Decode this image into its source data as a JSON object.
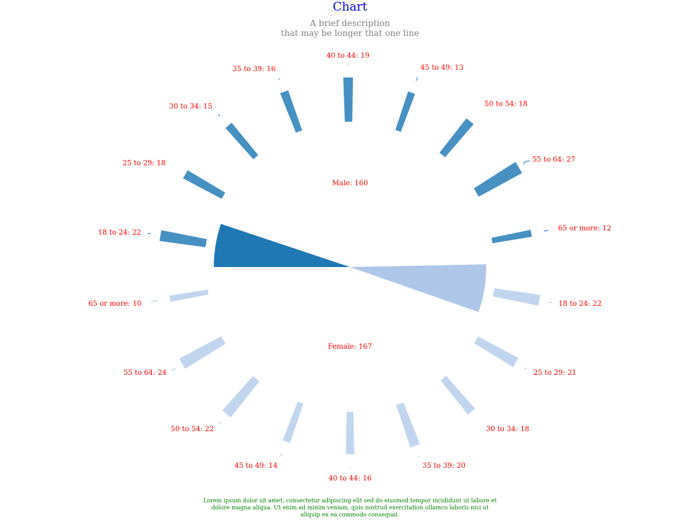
{
  "title": "Chart",
  "subtitle_lines": [
    "A brief description",
    "that may be longer that one line"
  ],
  "footer": "Lorem ipsum dolor sit amet, consectetur adipiscing elit sed do eiusmod tempor incididunt ut labore et dolore magna aliqua. Ut enim ad minim veniam, quis nostrud exercitation ullamco laboris nisi ut aliquip ex ea commodo consequat.",
  "colors": {
    "male": "#1f77b4",
    "female": "#aec7e8",
    "labels": "#ff0000",
    "title": "#0000ff",
    "subtitle": "#808080",
    "footer": "#008000"
  },
  "chart_data": {
    "type": "pie",
    "groups": [
      {
        "name": "Male",
        "value": 160,
        "label": "Male: 160",
        "categories": [
          {
            "name": "18 to 24",
            "value": 22,
            "label": "18 to 24: 22"
          },
          {
            "name": "25 to 29",
            "value": 18,
            "label": "25 to 29: 18"
          },
          {
            "name": "30 to 34",
            "value": 15,
            "label": "30 to 34: 15"
          },
          {
            "name": "35 to 39",
            "value": 16,
            "label": "35 to 39: 16"
          },
          {
            "name": "40 to 44",
            "value": 19,
            "label": "40 to 44: 19"
          },
          {
            "name": "45 to 49",
            "value": 13,
            "label": "45 to 49: 13"
          },
          {
            "name": "50 to 54",
            "value": 18,
            "label": "50 to 54: 18"
          },
          {
            "name": "55 to 64",
            "value": 27,
            "label": "55 to 64: 27"
          },
          {
            "name": "65 or more",
            "value": 12,
            "label": "65 or more: 12"
          }
        ]
      },
      {
        "name": "Female",
        "value": 167,
        "label": "Female: 167",
        "categories": [
          {
            "name": "18 to 24",
            "value": 22,
            "label": "18 to 24: 22"
          },
          {
            "name": "25 to 29",
            "value": 21,
            "label": "25 to 29: 21"
          },
          {
            "name": "30 to 34",
            "value": 18,
            "label": "30 to 34: 18"
          },
          {
            "name": "35 to 39",
            "value": 20,
            "label": "35 to 39: 20"
          },
          {
            "name": "40 to 44",
            "value": 16,
            "label": "40 to 44: 16"
          },
          {
            "name": "45 to 49",
            "value": 14,
            "label": "45 to 49: 14"
          },
          {
            "name": "50 to 54",
            "value": 22,
            "label": "50 to 54: 22"
          },
          {
            "name": "55 to 64",
            "value": 24,
            "label": "55 to 64: 24"
          },
          {
            "name": "65 or more",
            "value": 10,
            "label": "65 or more: 10"
          }
        ]
      }
    ]
  }
}
